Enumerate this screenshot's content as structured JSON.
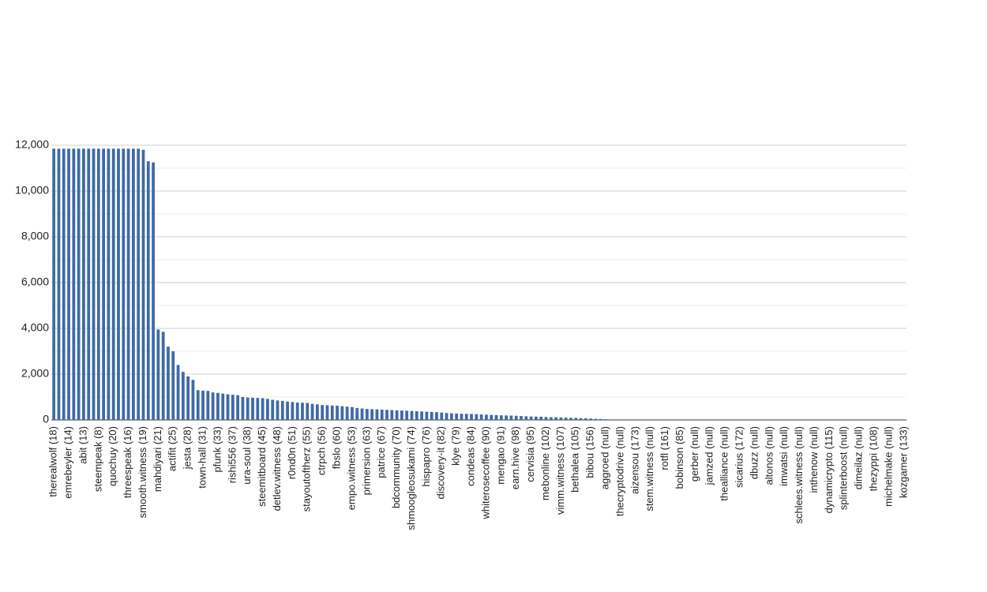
{
  "chart_data": {
    "type": "bar",
    "categories": [
      "therealwolf (18)",
      null,
      null,
      "emrebeyler (14)",
      null,
      null,
      "abit (13)",
      null,
      null,
      "steempeak (8)",
      null,
      null,
      "quochuy (20)",
      null,
      null,
      "threespeak (16)",
      null,
      null,
      "smooth.witness (19)",
      null,
      null,
      "mahdiyari (21)",
      null,
      null,
      "actifit (25)",
      null,
      null,
      "jesta (28)",
      null,
      null,
      "town-hall (31)",
      null,
      null,
      "pfunk (33)",
      null,
      null,
      "rishi556 (37)",
      null,
      null,
      "ura-soul (38)",
      null,
      null,
      "steemitboard (45)",
      null,
      null,
      "detlev.witness (48)",
      null,
      null,
      "r0nd0n (51)",
      null,
      null,
      "stayoutoftherz (55)",
      null,
      null,
      "ctrpch (56)",
      null,
      null,
      "fbslo (60)",
      null,
      null,
      "empo.witness (53)",
      null,
      null,
      "primersion (63)",
      null,
      null,
      "patrice (67)",
      null,
      null,
      "bdcommunity (70)",
      null,
      null,
      "shmoogleosukami (74)",
      null,
      null,
      "hispapro (76)",
      null,
      null,
      "discovery-it (82)",
      null,
      null,
      "klye (79)",
      null,
      null,
      "condeas (84)",
      null,
      null,
      "whiterosecoffee (90)",
      null,
      null,
      "mengao (91)",
      null,
      null,
      "earn.hive (98)",
      null,
      null,
      "cervisia (95)",
      null,
      null,
      "mebonline (102)",
      null,
      null,
      "vimm.witness (107)",
      null,
      null,
      "bethalea (105)",
      null,
      null,
      "bibou (156)",
      null,
      null,
      "aggroed (null)",
      null,
      null,
      "thecryptodrive (null)",
      null,
      null,
      "aizensou (173)",
      null,
      null,
      "stem.witness (null)",
      null,
      null,
      "rotfl (161)",
      null,
      null,
      "bobinson (85)",
      null,
      null,
      "gerber (null)",
      null,
      null,
      "jamzed (null)",
      null,
      null,
      "thealliance (null)",
      null,
      null,
      "sicarius (172)",
      null,
      null,
      "dbuzz (null)",
      null,
      null,
      "altonos (null)",
      null,
      null,
      "imwatsi (null)",
      null,
      null,
      "schlees.witness (null)",
      null,
      null,
      "inthenow (null)",
      null,
      null,
      "dynamicrypto (115)",
      null,
      null,
      "splinterboost (null)",
      null,
      null,
      "dimeilaz (null)",
      null,
      null,
      "thezyppi (108)",
      null,
      null,
      "michelmake (null)",
      null,
      null,
      "kozgamer (133)"
    ],
    "values": [
      11850,
      11850,
      11850,
      11850,
      11850,
      11850,
      11850,
      11850,
      11850,
      11850,
      11850,
      11850,
      11850,
      11850,
      11850,
      11850,
      11850,
      11850,
      11800,
      11300,
      11250,
      3950,
      3850,
      3200,
      3000,
      2400,
      2100,
      1900,
      1750,
      1300,
      1280,
      1270,
      1200,
      1180,
      1150,
      1120,
      1100,
      1080,
      1000,
      980,
      970,
      960,
      950,
      920,
      880,
      850,
      830,
      800,
      780,
      760,
      750,
      740,
      700,
      680,
      650,
      640,
      630,
      620,
      600,
      580,
      560,
      520,
      500,
      480,
      470,
      460,
      450,
      440,
      430,
      420,
      410,
      400,
      390,
      380,
      370,
      360,
      350,
      340,
      320,
      300,
      290,
      280,
      270,
      265,
      260,
      250,
      240,
      230,
      220,
      210,
      200,
      195,
      190,
      180,
      170,
      160,
      150,
      145,
      140,
      130,
      120,
      115,
      110,
      100,
      95,
      90,
      80,
      70,
      60,
      50,
      40,
      30,
      0,
      0,
      0,
      0,
      0,
      0,
      0,
      0,
      0,
      0,
      0,
      0,
      0,
      0,
      0,
      0,
      0,
      0,
      0,
      0,
      0,
      0,
      0,
      0,
      0,
      0,
      0,
      0,
      0,
      0,
      0,
      0,
      0,
      0,
      0,
      0,
      0,
      0,
      0,
      0,
      0,
      0,
      0,
      0,
      0,
      0,
      0,
      0,
      0,
      0,
      0,
      0,
      0,
      0,
      0,
      0,
      0,
      0,
      0,
      0
    ],
    "color": "#3f6aa7",
    "ylim": [
      0,
      12000
    ],
    "yticks": [
      0,
      {
        "value": 2000,
        "label": "2,000"
      },
      {
        "value": 4000,
        "label": "4,000"
      },
      {
        "value": 6000,
        "label": "6,000"
      },
      {
        "value": 8000,
        "label": "8,000"
      },
      {
        "value": 10000,
        "label": "10,000"
      },
      {
        "value": 12000,
        "label": "12,000"
      }
    ],
    "minor_yticks": [
      1000,
      3000,
      5000,
      7000,
      9000,
      11000
    ],
    "grid": true
  }
}
